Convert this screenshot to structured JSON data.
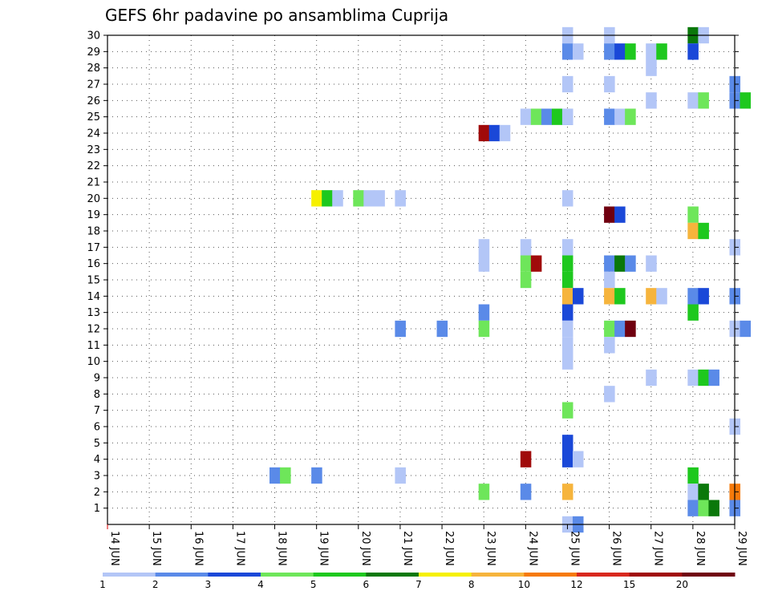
{
  "chart_data": {
    "type": "heatmap",
    "title": "GEFS 6hr padavine po ansamblima Cuprija",
    "x_labels": [
      "14 JUN",
      "15 JUN",
      "16 JUN",
      "17 JUN",
      "18 JUN",
      "19 JUN",
      "20 JUN",
      "21 JUN",
      "22 JUN",
      "23 JUN",
      "24 JUN",
      "25 JUN",
      "26 JUN",
      "27 JUN",
      "28 JUN",
      "29 JUN"
    ],
    "y_labels": [
      "1",
      "2",
      "3",
      "4",
      "5",
      "6",
      "7",
      "8",
      "9",
      "10",
      "11",
      "12",
      "13",
      "14",
      "15",
      "16",
      "17",
      "18",
      "19",
      "20",
      "21",
      "22",
      "23",
      "24",
      "25",
      "26",
      "27",
      "28",
      "29",
      "30"
    ],
    "grid": "dotted",
    "legend": {
      "position": "bottom",
      "labels": [
        "1",
        "2",
        "3",
        "4",
        "5",
        "6",
        "7",
        "8",
        "10",
        "12",
        "15",
        "20"
      ],
      "colors": [
        "#b3c6f7",
        "#5a8ae8",
        "#1a48d8",
        "#6ee65a",
        "#1ec81e",
        "#0a780a",
        "#f6f000",
        "#f6b43c",
        "#f67a0a",
        "#d8281e",
        "#a00a0a",
        "#700010"
      ]
    },
    "cells": [
      {
        "day": "25 JUN",
        "ens": 30,
        "c": 0
      },
      {
        "day": "26 JUN",
        "ens": 30,
        "c": 0
      },
      {
        "day": "26 JUN",
        "ens": 29,
        "c": 1
      },
      {
        "day": "26 JUN",
        "ens": 29,
        "c": 2
      },
      {
        "day": "26 JUN",
        "ens": 29,
        "c": 4
      },
      {
        "day": "28 JUN",
        "ens": 30,
        "c": 5
      },
      {
        "day": "28 JUN",
        "ens": 30,
        "c": 0
      },
      {
        "day": "25 JUN",
        "ens": 29,
        "c": 1
      },
      {
        "day": "25 JUN",
        "ens": 29,
        "c": 0
      },
      {
        "day": "27 JUN",
        "ens": 29,
        "c": 0
      },
      {
        "day": "27 JUN",
        "ens": 29,
        "c": 4
      },
      {
        "day": "28 JUN",
        "ens": 29,
        "c": 2
      },
      {
        "day": "27 JUN",
        "ens": 28,
        "c": 0
      },
      {
        "day": "25 JUN",
        "ens": 27,
        "c": 0
      },
      {
        "day": "26 JUN",
        "ens": 27,
        "c": 0
      },
      {
        "day": "29 JUN",
        "ens": 27,
        "c": 1
      },
      {
        "day": "27 JUN",
        "ens": 26,
        "c": 0
      },
      {
        "day": "28 JUN",
        "ens": 26,
        "c": 0
      },
      {
        "day": "28 JUN",
        "ens": 26,
        "c": 3
      },
      {
        "day": "29 JUN",
        "ens": 26,
        "c": 1
      },
      {
        "day": "29 JUN",
        "ens": 26,
        "c": 4
      },
      {
        "day": "24 JUN",
        "ens": 25,
        "c": 0
      },
      {
        "day": "24 JUN",
        "ens": 25,
        "c": 3
      },
      {
        "day": "24 JUN",
        "ens": 25,
        "c": 1
      },
      {
        "day": "24 JUN",
        "ens": 25,
        "c": 4
      },
      {
        "day": "24 JUN",
        "ens": 25,
        "c": 1
      },
      {
        "day": "25 JUN",
        "ens": 25,
        "c": 0
      },
      {
        "day": "26 JUN",
        "ens": 25,
        "c": 1
      },
      {
        "day": "26 JUN",
        "ens": 25,
        "c": 0
      },
      {
        "day": "26 JUN",
        "ens": 25,
        "c": 3
      },
      {
        "day": "23 JUN",
        "ens": 24,
        "c": 10
      },
      {
        "day": "23 JUN",
        "ens": 24,
        "c": 2
      },
      {
        "day": "23 JUN",
        "ens": 24,
        "c": 0
      },
      {
        "day": "19 JUN",
        "ens": 20,
        "c": 6
      },
      {
        "day": "19 JUN",
        "ens": 20,
        "c": 4
      },
      {
        "day": "19 JUN",
        "ens": 20,
        "c": 0
      },
      {
        "day": "20 JUN",
        "ens": 20,
        "c": 3
      },
      {
        "day": "20 JUN",
        "ens": 20,
        "c": 0
      },
      {
        "day": "20 JUN",
        "ens": 20,
        "c": 0
      },
      {
        "day": "21 JUN",
        "ens": 20,
        "c": 0
      },
      {
        "day": "25 JUN",
        "ens": 20,
        "c": 0
      },
      {
        "day": "26 JUN",
        "ens": 19,
        "c": 11
      },
      {
        "day": "26 JUN",
        "ens": 19,
        "c": 2
      },
      {
        "day": "28 JUN",
        "ens": 19,
        "c": 3
      },
      {
        "day": "28 JUN",
        "ens": 18,
        "c": 7
      },
      {
        "day": "28 JUN",
        "ens": 18,
        "c": 4
      },
      {
        "day": "23 JUN",
        "ens": 17,
        "c": 0
      },
      {
        "day": "24 JUN",
        "ens": 17,
        "c": 0
      },
      {
        "day": "25 JUN",
        "ens": 17,
        "c": 0
      },
      {
        "day": "29 JUN",
        "ens": 17,
        "c": 0
      },
      {
        "day": "23 JUN",
        "ens": 16,
        "c": 0
      },
      {
        "day": "24 JUN",
        "ens": 16,
        "c": 3
      },
      {
        "day": "24 JUN",
        "ens": 16,
        "c": 10
      },
      {
        "day": "25 JUN",
        "ens": 16,
        "c": 4
      },
      {
        "day": "26 JUN",
        "ens": 16,
        "c": 1
      },
      {
        "day": "26 JUN",
        "ens": 16,
        "c": 5
      },
      {
        "day": "26 JUN",
        "ens": 16,
        "c": 1
      },
      {
        "day": "27 JUN",
        "ens": 16,
        "c": 0
      },
      {
        "day": "24 JUN",
        "ens": 15,
        "c": 3
      },
      {
        "day": "25 JUN",
        "ens": 15,
        "c": 4
      },
      {
        "day": "26 JUN",
        "ens": 15,
        "c": 0
      },
      {
        "day": "25 JUN",
        "ens": 14,
        "c": 7
      },
      {
        "day": "25 JUN",
        "ens": 14,
        "c": 2
      },
      {
        "day": "26 JUN",
        "ens": 14,
        "c": 7
      },
      {
        "day": "26 JUN",
        "ens": 14,
        "c": 4
      },
      {
        "day": "27 JUN",
        "ens": 14,
        "c": 7
      },
      {
        "day": "27 JUN",
        "ens": 14,
        "c": 0
      },
      {
        "day": "28 JUN",
        "ens": 14,
        "c": 1
      },
      {
        "day": "28 JUN",
        "ens": 14,
        "c": 2
      },
      {
        "day": "29 JUN",
        "ens": 14,
        "c": 1
      },
      {
        "day": "23 JUN",
        "ens": 13,
        "c": 1
      },
      {
        "day": "25 JUN",
        "ens": 13,
        "c": 2
      },
      {
        "day": "28 JUN",
        "ens": 13,
        "c": 4
      },
      {
        "day": "21 JUN",
        "ens": 12,
        "c": 1
      },
      {
        "day": "22 JUN",
        "ens": 12,
        "c": 1
      },
      {
        "day": "23 JUN",
        "ens": 12,
        "c": 3
      },
      {
        "day": "25 JUN",
        "ens": 12,
        "c": 0
      },
      {
        "day": "26 JUN",
        "ens": 12,
        "c": 3
      },
      {
        "day": "26 JUN",
        "ens": 12,
        "c": 1
      },
      {
        "day": "26 JUN",
        "ens": 12,
        "c": 11
      },
      {
        "day": "29 JUN",
        "ens": 12,
        "c": 0
      },
      {
        "day": "29 JUN",
        "ens": 12,
        "c": 1
      },
      {
        "day": "25 JUN",
        "ens": 11,
        "c": 0
      },
      {
        "day": "26 JUN",
        "ens": 11,
        "c": 0
      },
      {
        "day": "25 JUN",
        "ens": 10,
        "c": 0
      },
      {
        "day": "27 JUN",
        "ens": 9,
        "c": 0
      },
      {
        "day": "28 JUN",
        "ens": 9,
        "c": 0
      },
      {
        "day": "28 JUN",
        "ens": 9,
        "c": 4
      },
      {
        "day": "28 JUN",
        "ens": 9,
        "c": 1
      },
      {
        "day": "26 JUN",
        "ens": 8,
        "c": 0
      },
      {
        "day": "25 JUN",
        "ens": 7,
        "c": 3
      },
      {
        "day": "29 JUN",
        "ens": 6,
        "c": 0
      },
      {
        "day": "25 JUN",
        "ens": 5,
        "c": 2
      },
      {
        "day": "24 JUN",
        "ens": 4,
        "c": 10
      },
      {
        "day": "25 JUN",
        "ens": 4,
        "c": 2
      },
      {
        "day": "25 JUN",
        "ens": 4,
        "c": 0
      },
      {
        "day": "18 JUN",
        "ens": 3,
        "c": 1
      },
      {
        "day": "18 JUN",
        "ens": 3,
        "c": 3
      },
      {
        "day": "19 JUN",
        "ens": 3,
        "c": 1
      },
      {
        "day": "21 JUN",
        "ens": 3,
        "c": 0
      },
      {
        "day": "28 JUN",
        "ens": 3,
        "c": 4
      },
      {
        "day": "23 JUN",
        "ens": 2,
        "c": 3
      },
      {
        "day": "24 JUN",
        "ens": 2,
        "c": 1
      },
      {
        "day": "25 JUN",
        "ens": 2,
        "c": 7
      },
      {
        "day": "28 JUN",
        "ens": 2,
        "c": 0
      },
      {
        "day": "28 JUN",
        "ens": 2,
        "c": 5
      },
      {
        "day": "29 JUN",
        "ens": 2,
        "c": 8
      },
      {
        "day": "28 JUN",
        "ens": 1,
        "c": 1
      },
      {
        "day": "28 JUN",
        "ens": 1,
        "c": 3
      },
      {
        "day": "28 JUN",
        "ens": 1,
        "c": 5
      },
      {
        "day": "29 JUN",
        "ens": 1,
        "c": 1
      },
      {
        "day": "25 JUN",
        "ens": 0,
        "c": 0
      },
      {
        "day": "25 JUN",
        "ens": 0,
        "c": 1
      }
    ]
  }
}
